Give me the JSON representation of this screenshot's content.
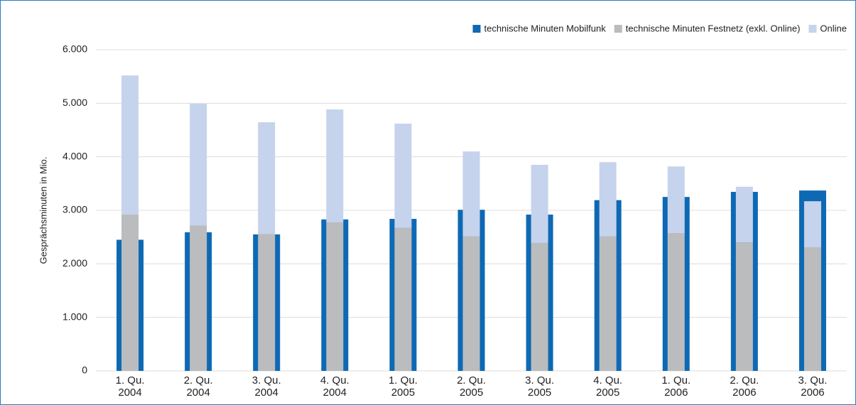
{
  "chart_data": {
    "type": "bar",
    "y_label": "Gesprächsminuten in Mio.",
    "categories": [
      [
        "1. Qu.",
        "2004"
      ],
      [
        "2. Qu.",
        "2004"
      ],
      [
        "3. Qu.",
        "2004"
      ],
      [
        "4. Qu.",
        "2004"
      ],
      [
        "1. Qu.",
        "2005"
      ],
      [
        "2. Qu.",
        "2005"
      ],
      [
        "3. Qu.",
        "2005"
      ],
      [
        "4. Qu.",
        "2005"
      ],
      [
        "1. Qu.",
        "2006"
      ],
      [
        "2. Qu.",
        "2006"
      ],
      [
        "3. Qu.",
        "2006"
      ]
    ],
    "series": [
      {
        "name": "technische Minuten Mobilfunk",
        "color": "#0e69b4",
        "values": [
          2450,
          2590,
          2550,
          2830,
          2840,
          3010,
          2920,
          3190,
          3250,
          3345,
          3370
        ]
      },
      {
        "name": "technische Minuten Festnetz (exkl. Online)",
        "color": "#bbbcbe",
        "values": [
          2920,
          2720,
          2560,
          2775,
          2670,
          2510,
          2390,
          2510,
          2575,
          2400,
          2310
        ]
      },
      {
        "name": "Online",
        "color": "#c6d3ec",
        "values": [
          2600,
          2270,
          2085,
          2110,
          1950,
          1590,
          1460,
          1390,
          1245,
          1040,
          860
        ]
      }
    ],
    "ylim": [
      0,
      6000
    ],
    "yticks": [
      0,
      {
        "value": 1000,
        "label": "1.000"
      },
      {
        "value": 2000,
        "label": "2.000"
      },
      {
        "value": 3000,
        "label": "3.000"
      },
      {
        "value": 4000,
        "label": "4.000"
      },
      {
        "value": 5000,
        "label": "5.000"
      },
      {
        "value": 6000,
        "label": "6.000"
      }
    ],
    "grid": true,
    "legend": "top-right"
  }
}
